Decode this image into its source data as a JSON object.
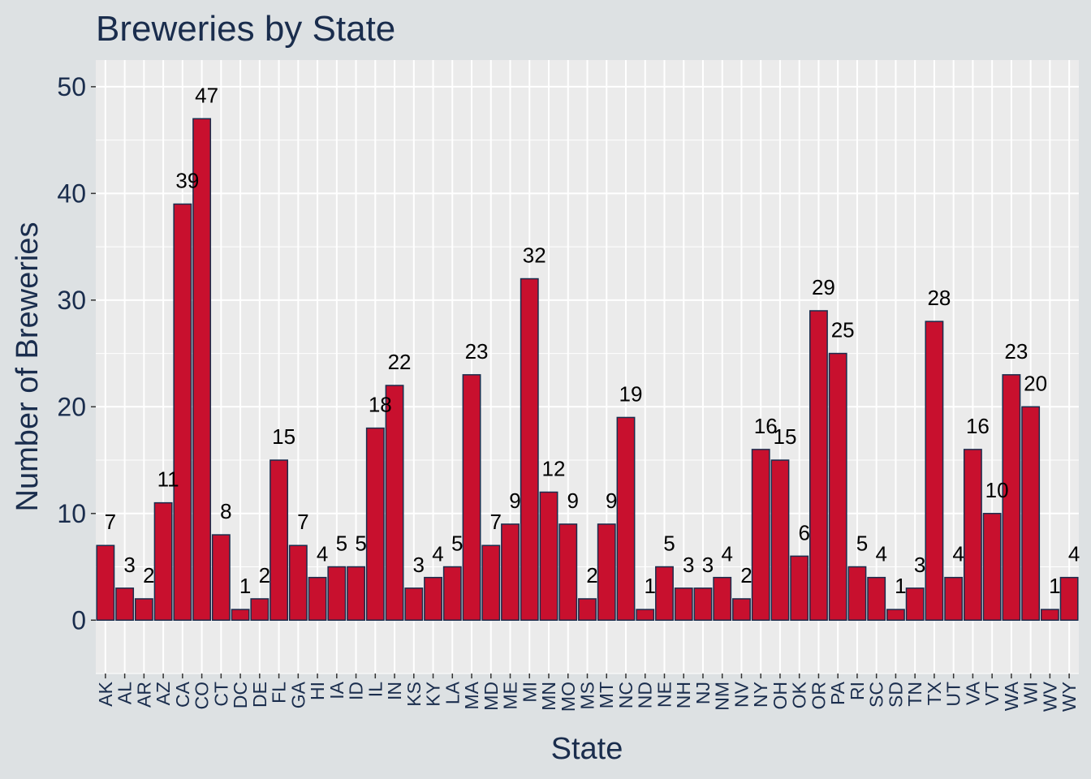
{
  "chart_data": {
    "type": "bar",
    "title": "Breweries by State",
    "xlabel": "State",
    "ylabel": "Number of Breweries",
    "ylim": [
      -5,
      52.5
    ],
    "yticks": [
      0,
      10,
      20,
      30,
      40,
      50
    ],
    "grid": true,
    "legend": "none",
    "categories": [
      "AK",
      "AL",
      "AR",
      "AZ",
      "CA",
      "CO",
      "CT",
      "DC",
      "DE",
      "FL",
      "GA",
      "HI",
      "IA",
      "ID",
      "IL",
      "IN",
      "KS",
      "KY",
      "LA",
      "MA",
      "MD",
      "ME",
      "MI",
      "MN",
      "MO",
      "MS",
      "MT",
      "NC",
      "ND",
      "NE",
      "NH",
      "NJ",
      "NM",
      "NV",
      "NY",
      "OH",
      "OK",
      "OR",
      "PA",
      "RI",
      "SC",
      "SD",
      "TN",
      "TX",
      "UT",
      "VA",
      "VT",
      "WA",
      "WI",
      "WV",
      "WY"
    ],
    "values": [
      7,
      3,
      2,
      11,
      39,
      47,
      8,
      1,
      2,
      15,
      7,
      4,
      5,
      5,
      18,
      22,
      3,
      4,
      5,
      23,
      7,
      9,
      32,
      12,
      9,
      2,
      9,
      19,
      1,
      5,
      3,
      3,
      4,
      2,
      16,
      15,
      6,
      29,
      25,
      5,
      4,
      1,
      3,
      28,
      4,
      16,
      10,
      23,
      20,
      1,
      4
    ],
    "colors": {
      "bar_fill": "#c8102e",
      "bar_stroke": "#1a2d4d",
      "panel_bg": "#ebebeb",
      "plot_bg": "#dde1e3",
      "text": "#1a2d4d"
    }
  }
}
